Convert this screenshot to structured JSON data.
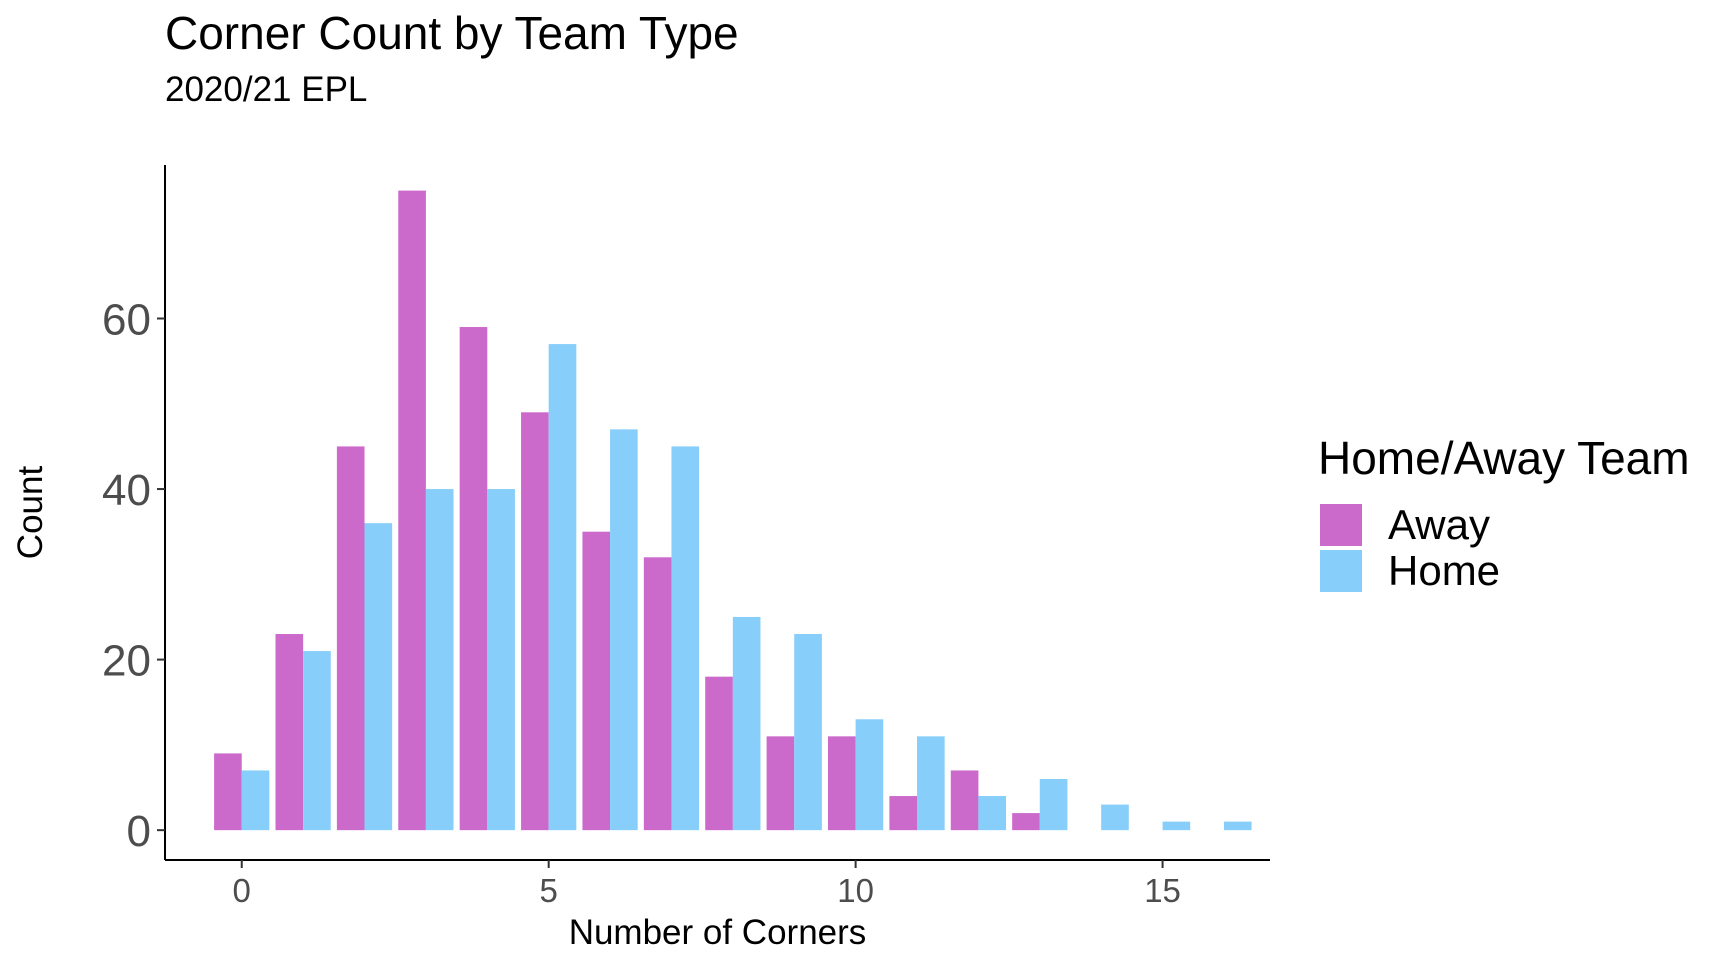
{
  "chart_data": {
    "type": "bar",
    "title": "Corner Count by Team Type",
    "subtitle": "2020/21 EPL",
    "xlabel": "Number of Corners",
    "ylabel": "Count",
    "xlim": [
      -1.25,
      16.75
    ],
    "ylim": [
      -3.5,
      78
    ],
    "x_ticks": [
      0,
      5,
      10,
      15
    ],
    "y_ticks": [
      0,
      20,
      40,
      60
    ],
    "grid": false,
    "legend": {
      "title": "Home/Away Team",
      "position": "right"
    },
    "x": [
      0,
      1,
      2,
      3,
      4,
      5,
      6,
      7,
      8,
      9,
      10,
      11,
      12,
      13,
      14,
      15,
      16
    ],
    "series": [
      {
        "name": "Away",
        "color": "#CC6ACC",
        "values": [
          9,
          23,
          45,
          75,
          59,
          49,
          35,
          32,
          18,
          11,
          11,
          4,
          7,
          2,
          0,
          0,
          0
        ]
      },
      {
        "name": "Home",
        "color": "#87CEFA",
        "values": [
          7,
          21,
          36,
          40,
          40,
          57,
          47,
          45,
          25,
          23,
          13,
          11,
          4,
          6,
          3,
          1,
          1
        ]
      }
    ]
  }
}
